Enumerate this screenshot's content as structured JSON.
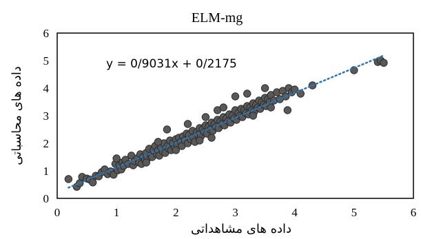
{
  "chart_data": {
    "type": "scatter",
    "title": "ELM-mg",
    "xlabel": "داده های مشاهداتی",
    "ylabel": "داده های محاسباتی",
    "xlim": [
      0,
      6
    ],
    "ylim": [
      0,
      6
    ],
    "xticks": [
      "0",
      "1",
      "2",
      "3",
      "4",
      "5",
      "6"
    ],
    "yticks": [
      "0",
      "1",
      "2",
      "3",
      "4",
      "5",
      "6"
    ],
    "grid": false,
    "legend": "none",
    "annotation": "y = 0/9031x + 0/2175",
    "trendline": {
      "slope": 0.9031,
      "intercept": 0.2175,
      "style": "dotted",
      "color": "#2e75b6"
    },
    "marker_color": "#595959",
    "points": [
      [
        0.19,
        0.7
      ],
      [
        0.33,
        0.42
      ],
      [
        0.38,
        0.55
      ],
      [
        0.42,
        0.78
      ],
      [
        0.5,
        0.72
      ],
      [
        0.55,
        0.68
      ],
      [
        0.6,
        0.58
      ],
      [
        0.65,
        0.82
      ],
      [
        0.7,
        0.8
      ],
      [
        0.75,
        0.95
      ],
      [
        0.8,
        1.05
      ],
      [
        0.85,
        0.88
      ],
      [
        0.9,
        0.98
      ],
      [
        0.95,
        0.86
      ],
      [
        0.98,
        1.25
      ],
      [
        1.0,
        1.45
      ],
      [
        1.02,
        1.02
      ],
      [
        1.05,
        1.2
      ],
      [
        1.08,
        1.05
      ],
      [
        1.1,
        1.3
      ],
      [
        1.12,
        1.18
      ],
      [
        1.15,
        1.4
      ],
      [
        1.2,
        1.25
      ],
      [
        1.25,
        1.55
      ],
      [
        1.28,
        1.2
      ],
      [
        1.3,
        1.35
      ],
      [
        1.35,
        1.45
      ],
      [
        1.38,
        1.3
      ],
      [
        1.4,
        1.6
      ],
      [
        1.42,
        1.25
      ],
      [
        1.45,
        1.5
      ],
      [
        1.48,
        1.4
      ],
      [
        1.5,
        1.65
      ],
      [
        1.52,
        1.45
      ],
      [
        1.55,
        1.8
      ],
      [
        1.58,
        1.55
      ],
      [
        1.6,
        1.5
      ],
      [
        1.62,
        1.75
      ],
      [
        1.65,
        1.9
      ],
      [
        1.68,
        1.6
      ],
      [
        1.7,
        1.75
      ],
      [
        1.72,
        1.55
      ],
      [
        1.75,
        1.85
      ],
      [
        1.78,
        1.7
      ],
      [
        1.8,
        2.0
      ],
      [
        1.82,
        1.65
      ],
      [
        1.85,
        2.5
      ],
      [
        1.86,
        1.9
      ],
      [
        1.88,
        1.8
      ],
      [
        1.9,
        2.1
      ],
      [
        1.92,
        1.75
      ],
      [
        1.95,
        2.0
      ],
      [
        1.98,
        1.85
      ],
      [
        2.0,
        2.15
      ],
      [
        2.02,
        1.95
      ],
      [
        2.05,
        2.2
      ],
      [
        2.08,
        2.05
      ],
      [
        2.1,
        1.9
      ],
      [
        2.12,
        2.25
      ],
      [
        2.15,
        2.1
      ],
      [
        2.18,
        2.35
      ],
      [
        2.2,
        2.0
      ],
      [
        2.22,
        2.3
      ],
      [
        2.25,
        2.15
      ],
      [
        2.28,
        2.45
      ],
      [
        2.3,
        2.2
      ],
      [
        2.32,
        2.05
      ],
      [
        2.35,
        2.4
      ],
      [
        2.38,
        2.3
      ],
      [
        2.4,
        2.55
      ],
      [
        2.42,
        2.25
      ],
      [
        2.45,
        2.5
      ],
      [
        2.48,
        2.4
      ],
      [
        2.5,
        2.65
      ],
      [
        2.52,
        2.35
      ],
      [
        2.55,
        2.6
      ],
      [
        2.58,
        2.5
      ],
      [
        2.6,
        2.75
      ],
      [
        2.62,
        2.45
      ],
      [
        2.65,
        2.7
      ],
      [
        2.68,
        2.6
      ],
      [
        2.7,
        2.85
      ],
      [
        2.72,
        2.55
      ],
      [
        2.75,
        2.8
      ],
      [
        2.78,
        2.7
      ],
      [
        2.8,
        2.95
      ],
      [
        2.82,
        2.65
      ],
      [
        2.85,
        2.9
      ],
      [
        2.88,
        2.8
      ],
      [
        2.9,
        3.05
      ],
      [
        2.92,
        2.75
      ],
      [
        2.95,
        3.0
      ],
      [
        2.98,
        2.9
      ],
      [
        3.0,
        3.2
      ],
      [
        3.02,
        2.85
      ],
      [
        3.05,
        3.1
      ],
      [
        3.08,
        3.0
      ],
      [
        3.1,
        3.25
      ],
      [
        3.12,
        2.95
      ],
      [
        3.15,
        3.2
      ],
      [
        3.18,
        3.1
      ],
      [
        3.2,
        3.35
      ],
      [
        3.22,
        3.05
      ],
      [
        3.25,
        3.3
      ],
      [
        3.28,
        3.2
      ],
      [
        3.3,
        3.45
      ],
      [
        3.32,
        3.15
      ],
      [
        3.35,
        3.4
      ],
      [
        3.38,
        3.3
      ],
      [
        3.4,
        3.55
      ],
      [
        3.42,
        3.25
      ],
      [
        3.45,
        3.5
      ],
      [
        3.48,
        3.4
      ],
      [
        3.5,
        3.65
      ],
      [
        3.52,
        3.35
      ],
      [
        3.55,
        3.6
      ],
      [
        3.58,
        3.5
      ],
      [
        3.6,
        3.75
      ],
      [
        3.65,
        3.55
      ],
      [
        3.7,
        3.85
      ],
      [
        3.75,
        3.6
      ],
      [
        3.8,
        3.9
      ],
      [
        3.85,
        3.7
      ],
      [
        3.88,
        3.2
      ],
      [
        3.9,
        4.0
      ],
      [
        3.95,
        3.85
      ],
      [
        4.0,
        3.95
      ],
      [
        4.1,
        3.8
      ],
      [
        4.3,
        4.1
      ],
      [
        5.0,
        4.65
      ],
      [
        5.4,
        4.95
      ],
      [
        5.45,
        5.0
      ],
      [
        5.5,
        4.92
      ],
      [
        2.2,
        2.7
      ],
      [
        2.6,
        2.2
      ],
      [
        2.7,
        3.2
      ],
      [
        3.0,
        3.7
      ],
      [
        3.3,
        3.0
      ],
      [
        2.4,
        2.1
      ],
      [
        3.6,
        3.3
      ],
      [
        1.7,
        2.05
      ],
      [
        2.0,
        1.75
      ],
      [
        3.2,
        3.8
      ],
      [
        3.5,
        4.0
      ],
      [
        2.5,
        2.95
      ],
      [
        2.8,
        3.3
      ],
      [
        1.5,
        1.3
      ]
    ]
  }
}
